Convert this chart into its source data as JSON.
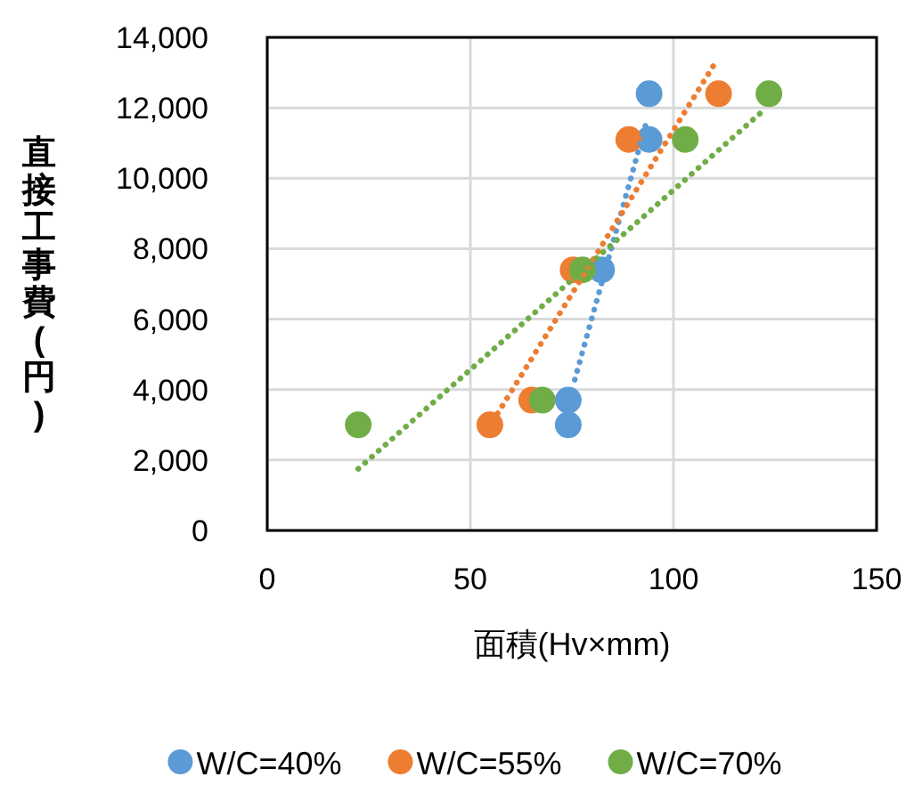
{
  "chart_data": {
    "type": "scatter",
    "xlabel": "面積(Hv×mm)",
    "ylabel": "直接工事費(円)",
    "xlim": [
      0,
      150
    ],
    "xticks": [
      0,
      50,
      100,
      150
    ],
    "ylim": [
      0,
      14000
    ],
    "yticks": [
      0,
      {
        "value": 2000,
        "label": "2,000"
      },
      {
        "value": 4000,
        "label": "4,000"
      },
      {
        "value": 6000,
        "label": "6,000"
      },
      {
        "value": 8000,
        "label": "8,000"
      },
      {
        "value": 10000,
        "label": "10,000"
      },
      {
        "value": 12000,
        "label": "12,000"
      },
      {
        "value": 14000,
        "label": "14,000"
      }
    ],
    "grid": true,
    "legend": "bottom",
    "marker": "circle",
    "series": [
      {
        "name": "W/C=40%",
        "color": "#5b9bd5",
        "type": "scatter",
        "x": [
          94,
          94,
          82.3,
          74.1,
          74.1
        ],
        "values": [
          12400,
          11100,
          7400,
          3700,
          3000
        ]
      },
      {
        "name": "W/C=55%",
        "color": "#ed7d31",
        "type": "scatter",
        "x": [
          111.1,
          89,
          75.3,
          65.1,
          54.8
        ],
        "values": [
          12400,
          11100,
          7400,
          3700,
          3000
        ]
      },
      {
        "name": "W/C=70%",
        "color": "#70ad47",
        "type": "scatter",
        "x": [
          123.5,
          102.9,
          77.6,
          67.7,
          22.4
        ],
        "values": [
          12400,
          11100,
          7400,
          3700,
          3000
        ]
      },
      {
        "color": "#5b9bd5",
        "type": "line",
        "line_style": "dotted",
        "marker": "none",
        "x": [
          75.7,
          93.6
        ],
        "values": [
          4280,
          11700
        ]
      },
      {
        "color": "#ed7d31",
        "type": "line",
        "line_style": "dotted",
        "marker": "none",
        "x": [
          56.7,
          110.4
        ],
        "values": [
          3320,
          13300
        ]
      },
      {
        "color": "#70ad47",
        "type": "line",
        "line_style": "dotted",
        "marker": "none",
        "x": [
          22.4,
          122.2
        ],
        "values": [
          1750,
          11930
        ]
      }
    ]
  }
}
